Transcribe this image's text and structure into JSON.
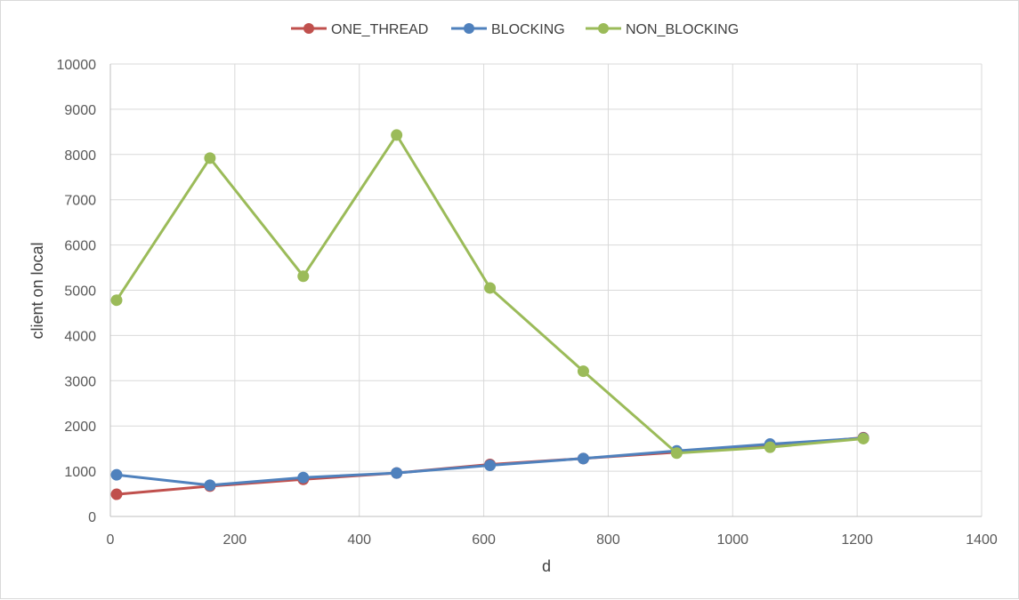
{
  "chart_data": {
    "type": "line",
    "xlabel": "d",
    "ylabel": "client on local",
    "xlim": [
      0,
      1400
    ],
    "ylim": [
      0,
      10000
    ],
    "x_ticks": [
      "0",
      "200",
      "400",
      "600",
      "800",
      "1000",
      "1200",
      "1400"
    ],
    "y_ticks": [
      "0",
      "1000",
      "2000",
      "3000",
      "4000",
      "5000",
      "6000",
      "7000",
      "8000",
      "9000",
      "10000"
    ],
    "grid": true,
    "legend_position": "top",
    "x": [
      10,
      160,
      310,
      460,
      610,
      760,
      910,
      1060,
      1210
    ],
    "series": [
      {
        "name": "ONE_THREAD",
        "color": "#c0504d",
        "values": [
          490,
          670,
          820,
          960,
          1150,
          1280,
          1420,
          1550,
          1740
        ]
      },
      {
        "name": "BLOCKING",
        "color": "#4f81bd",
        "values": [
          920,
          690,
          860,
          960,
          1130,
          1280,
          1450,
          1600,
          1730
        ]
      },
      {
        "name": "NON_BLOCKING",
        "color": "#9bbb59",
        "values": [
          4780,
          7920,
          5310,
          8430,
          5050,
          3210,
          1400,
          1530,
          1720
        ]
      }
    ]
  }
}
